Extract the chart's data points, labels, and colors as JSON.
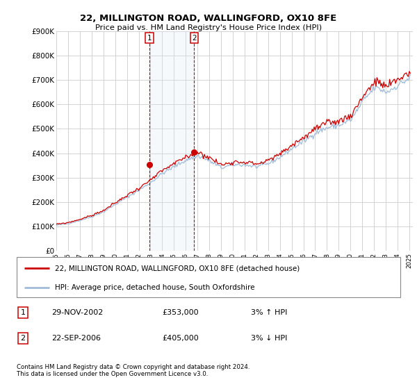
{
  "title": "22, MILLINGTON ROAD, WALLINGFORD, OX10 8FE",
  "subtitle": "Price paid vs. HM Land Registry's House Price Index (HPI)",
  "legend_line1": "22, MILLINGTON ROAD, WALLINGFORD, OX10 8FE (detached house)",
  "legend_line2": "HPI: Average price, detached house, South Oxfordshire",
  "transaction1_date_str": "29-NOV-2002",
  "transaction1_price_str": "£353,000",
  "transaction1_hpi_str": "3% ↑ HPI",
  "transaction2_date_str": "22-SEP-2006",
  "transaction2_price_str": "£405,000",
  "transaction2_hpi_str": "3% ↓ HPI",
  "footnote": "Contains HM Land Registry data © Crown copyright and database right 2024.\nThis data is licensed under the Open Government Licence v3.0.",
  "ylim_min": 0,
  "ylim_max": 900000,
  "yticks": [
    0,
    100000,
    200000,
    300000,
    400000,
    500000,
    600000,
    700000,
    800000,
    900000
  ],
  "background_color": "#ffffff",
  "grid_color": "#cccccc",
  "hpi_color": "#a0bcd8",
  "price_color": "#cc0000",
  "shade_color": "#dce9f5",
  "transaction1_x": 2002.9,
  "transaction2_x": 2006.72,
  "marker1_y": 353000,
  "marker2_y": 405000,
  "xlim_min": 1995.0,
  "xlim_max": 2025.3
}
